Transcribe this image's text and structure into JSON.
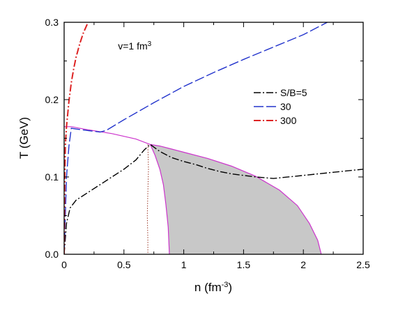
{
  "chart_data": {
    "type": "line",
    "xlabel": "n (fm",
    "xlabel_sup": "-3",
    "xlabel_end": ")",
    "ylabel": "T (GeV)",
    "xlim": [
      0,
      2.5
    ],
    "ylim": [
      0,
      0.3
    ],
    "x_ticks": [
      {
        "value": 0,
        "label": "0"
      },
      {
        "value": 0.5,
        "label": "0.5"
      },
      {
        "value": 1,
        "label": "1"
      },
      {
        "value": 1.5,
        "label": "1.5"
      },
      {
        "value": 2,
        "label": "2"
      },
      {
        "value": 2.5,
        "label": "2.5"
      }
    ],
    "y_ticks": [
      {
        "value": 0,
        "label": "0.0"
      },
      {
        "value": 0.1,
        "label": "0.1"
      },
      {
        "value": 0.2,
        "label": "0.2"
      },
      {
        "value": 0.3,
        "label": "0.3"
      }
    ],
    "annotation": {
      "text": "v=1 fm",
      "sup": "3",
      "x": 0.45,
      "y": 0.265
    },
    "legend_placement": "right",
    "grid": false,
    "series": [
      {
        "name": "S/B=5",
        "style": "dash-dot",
        "color": "#000000",
        "x": [
          0,
          0.02,
          0.05,
          0.1,
          0.2,
          0.3,
          0.4,
          0.5,
          0.6,
          0.67,
          0.72,
          0.8,
          0.9,
          1.0,
          1.1,
          1.2,
          1.3,
          1.4,
          1.5,
          1.6,
          1.75,
          2.0,
          2.25,
          2.5
        ],
        "y": [
          0,
          0.04,
          0.06,
          0.07,
          0.08,
          0.09,
          0.1,
          0.11,
          0.122,
          0.135,
          0.142,
          0.133,
          0.125,
          0.12,
          0.116,
          0.111,
          0.107,
          0.104,
          0.102,
          0.1,
          0.098,
          0.102,
          0.106,
          0.11
        ]
      },
      {
        "name": "30",
        "style": "long-dash",
        "color": "#2233cc",
        "x": [
          0,
          0.01,
          0.02,
          0.04,
          0.06,
          0.1,
          0.2,
          0.3,
          0.35,
          0.5,
          0.75,
          1.0,
          1.25,
          1.5,
          1.75,
          2.0,
          2.2
        ],
        "y": [
          0,
          0.05,
          0.1,
          0.14,
          0.163,
          0.162,
          0.16,
          0.158,
          0.16,
          0.174,
          0.196,
          0.217,
          0.235,
          0.252,
          0.268,
          0.284,
          0.3
        ]
      },
      {
        "name": "300",
        "style": "dash-dot",
        "color": "#dd2222",
        "x": [
          0,
          0.003,
          0.006,
          0.01,
          0.02,
          0.04,
          0.06,
          0.08,
          0.1,
          0.13,
          0.16,
          0.2
        ],
        "y": [
          0,
          0.05,
          0.1,
          0.14,
          0.165,
          0.198,
          0.222,
          0.24,
          0.255,
          0.272,
          0.286,
          0.3
        ]
      }
    ],
    "legend": [
      {
        "label": "S/B=5",
        "style": "dash-dot",
        "color": "#000000"
      },
      {
        "label": "30",
        "style": "long-dash",
        "color": "#2233cc"
      },
      {
        "label": "300",
        "style": "dash-dot",
        "color": "#dd2222"
      }
    ],
    "shaded_region": {
      "fill": "#c8c8c8",
      "edge": "#cc33cc",
      "x": [
        0.72,
        0.8,
        0.9,
        1.0,
        1.2,
        1.4,
        1.6,
        1.8,
        1.95,
        2.05,
        2.12,
        2.15,
        2.15,
        0.88,
        0.87,
        0.85,
        0.83,
        0.8,
        0.76,
        0.72
      ],
      "y": [
        0.142,
        0.14,
        0.136,
        0.132,
        0.124,
        0.114,
        0.101,
        0.083,
        0.063,
        0.04,
        0.018,
        0.0,
        0.0,
        0.0,
        0.035,
        0.065,
        0.09,
        0.11,
        0.128,
        0.142
      ]
    },
    "boundary_line": {
      "color": "#cc33cc",
      "x": [
        0,
        0.06,
        0.2,
        0.4,
        0.6,
        0.72,
        0.8,
        0.9,
        1.0,
        1.2,
        1.4,
        1.6,
        1.8,
        1.95,
        2.05,
        2.12,
        2.15
      ],
      "y": [
        0.165,
        0.165,
        0.161,
        0.156,
        0.149,
        0.142,
        0.14,
        0.136,
        0.132,
        0.124,
        0.114,
        0.101,
        0.083,
        0.063,
        0.04,
        0.018,
        0.0
      ]
    },
    "inner_boundary": {
      "color": "#cc33cc",
      "x": [
        0.72,
        0.76,
        0.8,
        0.83,
        0.85,
        0.87,
        0.88
      ],
      "y": [
        0.142,
        0.128,
        0.11,
        0.09,
        0.065,
        0.035,
        0.0
      ]
    },
    "dotted_line": {
      "color": "#993322",
      "x": [
        0.7,
        0.705,
        0.7,
        0.695,
        0.7,
        0.7
      ],
      "y": [
        0.142,
        0.11,
        0.08,
        0.05,
        0.02,
        0.0
      ]
    }
  }
}
